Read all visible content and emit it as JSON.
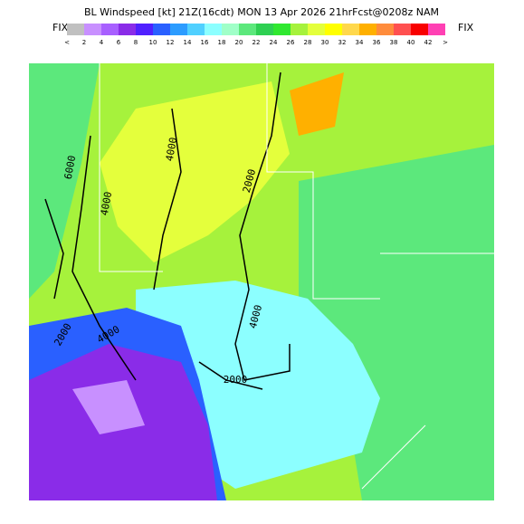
{
  "header": {
    "title": "BL Windspeed [kt] 21Z(16cdt) MON 13 Apr 2026 21hrFcst@0208z NAM",
    "left_label": "FIX",
    "right_label": "FIX"
  },
  "scale": {
    "labels": [
      "<",
      "2",
      "4",
      "6",
      "8",
      "10",
      "12",
      "14",
      "16",
      "18",
      "20",
      "22",
      "24",
      "26",
      "28",
      "30",
      "32",
      "34",
      "36",
      "38",
      "40",
      "42",
      ">"
    ],
    "colors": [
      "#c0c0c0",
      "#c890ff",
      "#a860ff",
      "#8a2ce8",
      "#5020ff",
      "#2a60ff",
      "#2c9cff",
      "#50d0ff",
      "#8cffff",
      "#a0ffc8",
      "#5ce87c",
      "#2ed052",
      "#30e830",
      "#a6f23c",
      "#e4ff3c",
      "#ffff00",
      "#ffd84c",
      "#ffb000",
      "#ff8c3c",
      "#ff5050",
      "#f80000",
      "#ff40b4"
    ]
  },
  "contours": [
    {
      "label": "6000"
    },
    {
      "label": "4000"
    },
    {
      "label": "4000"
    },
    {
      "label": "2000"
    },
    {
      "label": "4000"
    },
    {
      "label": "4000"
    },
    {
      "label": "2000"
    },
    {
      "label": "2000"
    }
  ]
}
